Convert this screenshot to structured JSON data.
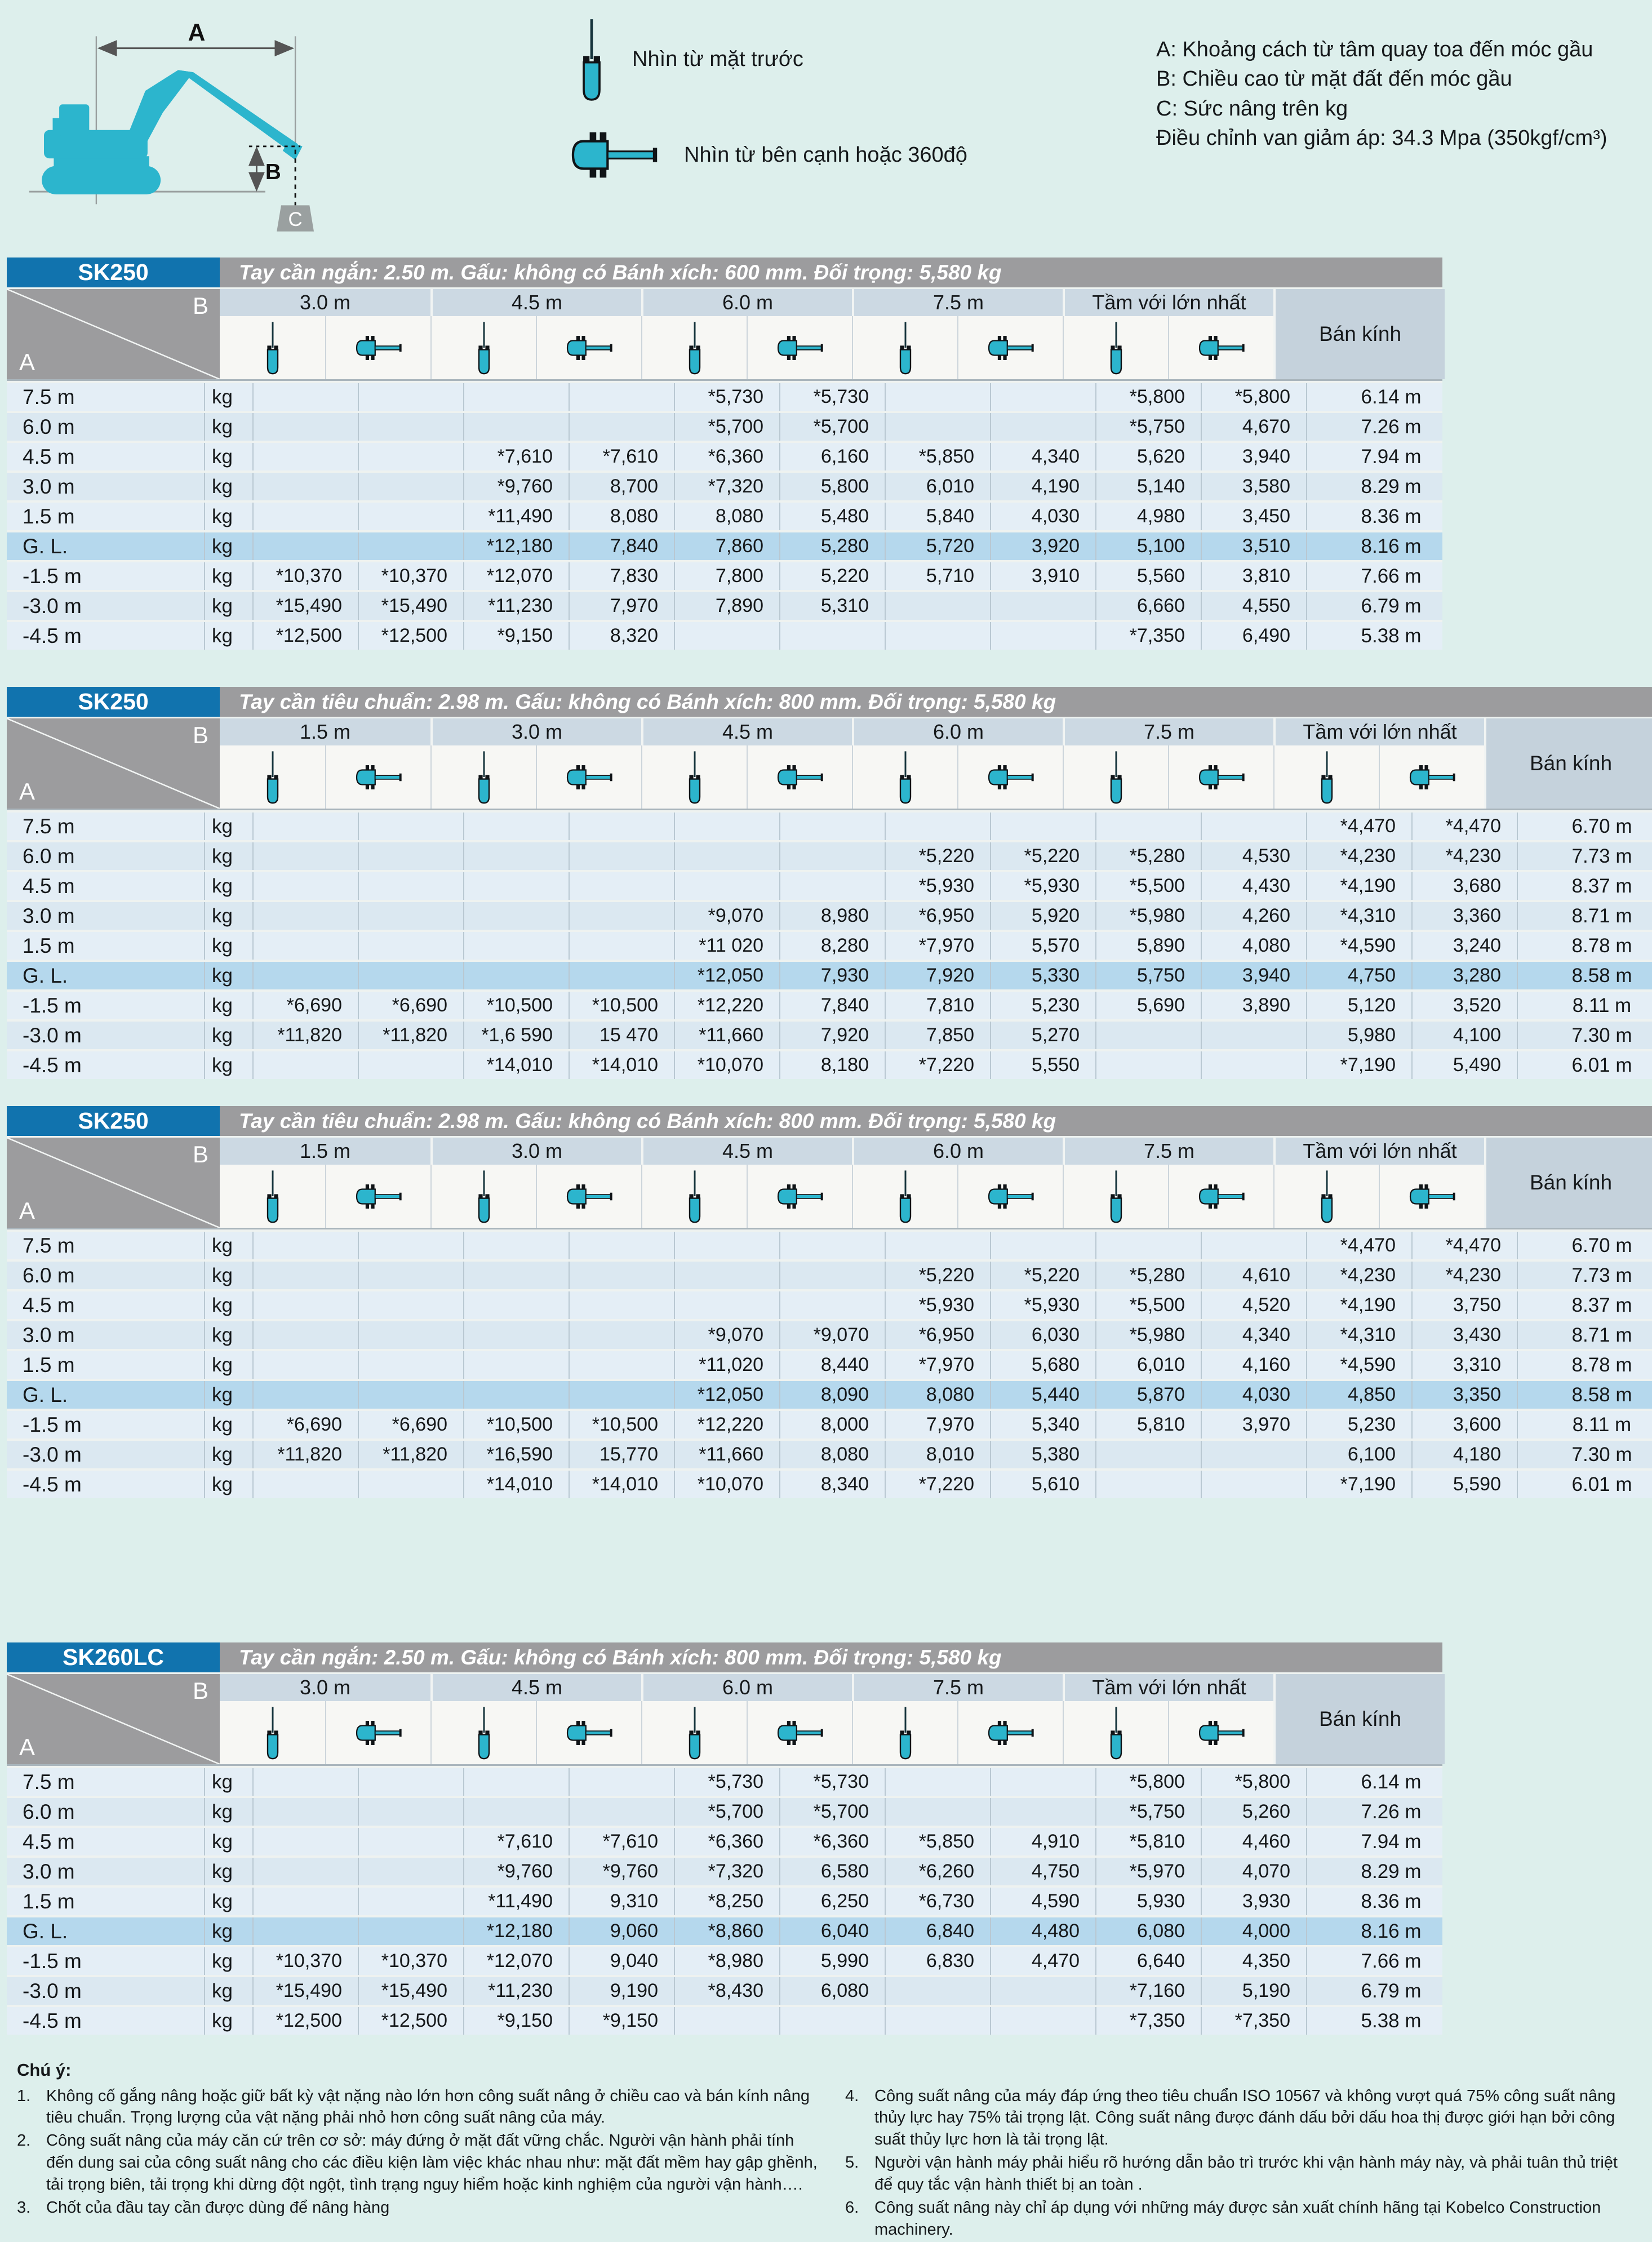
{
  "legend": {
    "dims": {
      "a": "A",
      "b": "B",
      "c": "C"
    },
    "front_view_label": "Nhìn từ mặt trước",
    "side_view_label": "Nhìn từ bên cạnh hoặc 360độ",
    "info_lines": [
      "A: Khoảng cách từ tâm quay toa đến móc gầu",
      "B: Chiều cao từ mặt đất đến móc gầu",
      "C: Sức nâng trên kg",
      "Điều chỉnh van giảm áp: 34.3 Mpa (350kgf/cm³)"
    ]
  },
  "table_common": {
    "unit": "kg",
    "radius_header": "Bán kính",
    "corner_top": "B",
    "corner_bottom": "A"
  },
  "colors": {
    "accent_blue": "#1173ae",
    "machine_teal": "#2cb5cd",
    "bar_gray": "#9c9c9e",
    "gl_row_blue": "#b5d8ed"
  },
  "tables": [
    {
      "model": "SK250",
      "spec": "Tay cần ngắn: 2.50 m. Gấu: không có Bánh xích:  600 mm. Đối trọng: 5,580 kg",
      "groups": [
        "3.0 m",
        "4.5 m",
        "6.0 m",
        "7.5 m",
        "Tầm với lớn nhất"
      ],
      "rows": [
        {
          "label": "7.5 m",
          "gl": false,
          "cells": [
            "",
            "",
            "",
            "",
            "*5,730",
            "*5,730",
            "",
            "",
            "*5,800",
            "*5,800"
          ],
          "radius": "6.14 m"
        },
        {
          "label": "6.0 m",
          "gl": false,
          "cells": [
            "",
            "",
            "",
            "",
            "*5,700",
            "*5,700",
            "",
            "",
            "*5,750",
            "4,670"
          ],
          "radius": "7.26 m"
        },
        {
          "label": "4.5 m",
          "gl": false,
          "cells": [
            "",
            "",
            "*7,610",
            "*7,610",
            "*6,360",
            "6,160",
            "*5,850",
            "4,340",
            "5,620",
            "3,940"
          ],
          "radius": "7.94 m"
        },
        {
          "label": "3.0 m",
          "gl": false,
          "cells": [
            "",
            "",
            "*9,760",
            "8,700",
            "*7,320",
            "5,800",
            "6,010",
            "4,190",
            "5,140",
            "3,580"
          ],
          "radius": "8.29 m"
        },
        {
          "label": "1.5 m",
          "gl": false,
          "cells": [
            "",
            "",
            "*11,490",
            "8,080",
            "8,080",
            "5,480",
            "5,840",
            "4,030",
            "4,980",
            "3,450"
          ],
          "radius": "8.36 m"
        },
        {
          "label": "G. L.",
          "gl": true,
          "cells": [
            "",
            "",
            "*12,180",
            "7,840",
            "7,860",
            "5,280",
            "5,720",
            "3,920",
            "5,100",
            "3,510"
          ],
          "radius": "8.16 m"
        },
        {
          "label": "-1.5 m",
          "gl": false,
          "cells": [
            "*10,370",
            "*10,370",
            "*12,070",
            "7,830",
            "7,800",
            "5,220",
            "5,710",
            "3,910",
            "5,560",
            "3,810"
          ],
          "radius": "7.66 m"
        },
        {
          "label": "-3.0 m",
          "gl": false,
          "cells": [
            "*15,490",
            "*15,490",
            "*11,230",
            "7,970",
            "7,890",
            "5,310",
            "",
            "",
            "6,660",
            "4,550"
          ],
          "radius": "6.79 m"
        },
        {
          "label": "-4.5 m",
          "gl": false,
          "cells": [
            "*12,500",
            "*12,500",
            "*9,150",
            "8,320",
            "",
            "",
            "",
            "",
            "*7,350",
            "6,490"
          ],
          "radius": "5.38 m"
        }
      ]
    },
    {
      "model": "SK250",
      "spec": "Tay cần tiêu chuẩn: 2.98 m. Gấu: không có Bánh xích:  800 mm. Đối trọng: 5,580 kg",
      "groups": [
        "1.5 m",
        "3.0 m",
        "4.5 m",
        "6.0 m",
        "7.5 m",
        "Tầm với lớn nhất"
      ],
      "rows": [
        {
          "label": "7.5 m",
          "gl": false,
          "cells": [
            "",
            "",
            "",
            "",
            "",
            "",
            "",
            "",
            "",
            "",
            "*4,470",
            "*4,470"
          ],
          "radius": "6.70 m"
        },
        {
          "label": "6.0 m",
          "gl": false,
          "cells": [
            "",
            "",
            "",
            "",
            "",
            "",
            "*5,220",
            "*5,220",
            "*5,280",
            "4,530",
            "*4,230",
            "*4,230"
          ],
          "radius": "7.73 m"
        },
        {
          "label": "4.5 m",
          "gl": false,
          "cells": [
            "",
            "",
            "",
            "",
            "",
            "",
            "*5,930",
            "*5,930",
            "*5,500",
            "4,430",
            "*4,190",
            "3,680"
          ],
          "radius": "8.37 m"
        },
        {
          "label": "3.0 m",
          "gl": false,
          "cells": [
            "",
            "",
            "",
            "",
            "*9,070",
            "8,980",
            "*6,950",
            "5,920",
            "*5,980",
            "4,260",
            "*4,310",
            "3,360"
          ],
          "radius": "8.71 m"
        },
        {
          "label": "1.5 m",
          "gl": false,
          "cells": [
            "",
            "",
            "",
            "",
            "*11 020",
            "8,280",
            "*7,970",
            "5,570",
            "5,890",
            "4,080",
            "*4,590",
            "3,240"
          ],
          "radius": "8.78 m"
        },
        {
          "label": "G. L.",
          "gl": true,
          "cells": [
            "",
            "",
            "",
            "",
            "*12,050",
            "7,930",
            "7,920",
            "5,330",
            "5,750",
            "3,940",
            "4,750",
            "3,280"
          ],
          "radius": "8.58 m"
        },
        {
          "label": "-1.5 m",
          "gl": false,
          "cells": [
            "*6,690",
            "*6,690",
            "*10,500",
            "*10,500",
            "*12,220",
            "7,840",
            "7,810",
            "5,230",
            "5,690",
            "3,890",
            "5,120",
            "3,520"
          ],
          "radius": "8.11 m"
        },
        {
          "label": "-3.0 m",
          "gl": false,
          "cells": [
            "*11,820",
            "*11,820",
            "*1,6 590",
            "15 470",
            "*11,660",
            "7,920",
            "7,850",
            "5,270",
            "",
            "",
            "5,980",
            "4,100"
          ],
          "radius": "7.30 m"
        },
        {
          "label": "-4.5 m",
          "gl": false,
          "cells": [
            "",
            "",
            "*14,010",
            "*14,010",
            "*10,070",
            "8,180",
            "*7,220",
            "5,550",
            "",
            "",
            "*7,190",
            "5,490"
          ],
          "radius": "6.01 m"
        }
      ]
    },
    {
      "model": "SK250",
      "spec": "Tay cần tiêu chuẩn: 2.98 m. Gấu: không có Bánh xích:  800 mm. Đối trọng: 5,580 kg",
      "groups": [
        "1.5 m",
        "3.0 m",
        "4.5 m",
        "6.0 m",
        "7.5 m",
        "Tầm với lớn nhất"
      ],
      "rows": [
        {
          "label": "7.5 m",
          "gl": false,
          "cells": [
            "",
            "",
            "",
            "",
            "",
            "",
            "",
            "",
            "",
            "",
            "*4,470",
            "*4,470"
          ],
          "radius": "6.70 m"
        },
        {
          "label": "6.0 m",
          "gl": false,
          "cells": [
            "",
            "",
            "",
            "",
            "",
            "",
            "*5,220",
            "*5,220",
            "*5,280",
            "4,610",
            "*4,230",
            "*4,230"
          ],
          "radius": "7.73 m"
        },
        {
          "label": "4.5 m",
          "gl": false,
          "cells": [
            "",
            "",
            "",
            "",
            "",
            "",
            "*5,930",
            "*5,930",
            "*5,500",
            "4,520",
            "*4,190",
            "3,750"
          ],
          "radius": "8.37 m"
        },
        {
          "label": "3.0 m",
          "gl": false,
          "cells": [
            "",
            "",
            "",
            "",
            "*9,070",
            "*9,070",
            "*6,950",
            "6,030",
            "*5,980",
            "4,340",
            "*4,310",
            "3,430"
          ],
          "radius": "8.71 m"
        },
        {
          "label": "1.5 m",
          "gl": false,
          "cells": [
            "",
            "",
            "",
            "",
            "*11,020",
            "8,440",
            "*7,970",
            "5,680",
            "6,010",
            "4,160",
            "*4,590",
            "3,310"
          ],
          "radius": "8.78 m"
        },
        {
          "label": "G. L.",
          "gl": true,
          "cells": [
            "",
            "",
            "",
            "",
            "*12,050",
            "8,090",
            "8,080",
            "5,440",
            "5,870",
            "4,030",
            "4,850",
            "3,350"
          ],
          "radius": "8.58 m"
        },
        {
          "label": "-1.5 m",
          "gl": false,
          "cells": [
            "*6,690",
            "*6,690",
            "*10,500",
            "*10,500",
            "*12,220",
            "8,000",
            "7,970",
            "5,340",
            "5,810",
            "3,970",
            "5,230",
            "3,600"
          ],
          "radius": "8.11 m"
        },
        {
          "label": "-3.0 m",
          "gl": false,
          "cells": [
            "*11,820",
            "*11,820",
            "*16,590",
            "15,770",
            "*11,660",
            "8,080",
            "8,010",
            "5,380",
            "",
            "",
            "6,100",
            "4,180"
          ],
          "radius": "7.30 m"
        },
        {
          "label": "-4.5 m",
          "gl": false,
          "cells": [
            "",
            "",
            "*14,010",
            "*14,010",
            "*10,070",
            "8,340",
            "*7,220",
            "5,610",
            "",
            "",
            "*7,190",
            "5,590"
          ],
          "radius": "6.01 m"
        }
      ]
    },
    {
      "model": "SK260LC",
      "spec": "Tay cần ngắn: 2.50 m. Gấu: không có Bánh xích:  800 mm. Đối trọng: 5,580 kg",
      "groups": [
        "3.0 m",
        "4.5 m",
        "6.0 m",
        "7.5 m",
        "Tầm với lớn nhất"
      ],
      "rows": [
        {
          "label": "7.5 m",
          "gl": false,
          "cells": [
            "",
            "",
            "",
            "",
            "*5,730",
            "*5,730",
            "",
            "",
            "*5,800",
            "*5,800"
          ],
          "radius": "6.14 m"
        },
        {
          "label": "6.0 m",
          "gl": false,
          "cells": [
            "",
            "",
            "",
            "",
            "*5,700",
            "*5,700",
            "",
            "",
            "*5,750",
            "5,260"
          ],
          "radius": "7.26 m"
        },
        {
          "label": "4.5 m",
          "gl": false,
          "cells": [
            "",
            "",
            "*7,610",
            "*7,610",
            "*6,360",
            "*6,360",
            "*5,850",
            "4,910",
            "*5,810",
            "4,460"
          ],
          "radius": "7.94 m"
        },
        {
          "label": "3.0 m",
          "gl": false,
          "cells": [
            "",
            "",
            "*9,760",
            "*9,760",
            "*7,320",
            "6,580",
            "*6,260",
            "4,750",
            "*5,970",
            "4,070"
          ],
          "radius": "8.29 m"
        },
        {
          "label": "1.5 m",
          "gl": false,
          "cells": [
            "",
            "",
            "*11,490",
            "9,310",
            "*8,250",
            "6,250",
            "*6,730",
            "4,590",
            "5,930",
            "3,930"
          ],
          "radius": "8.36 m"
        },
        {
          "label": "G. L.",
          "gl": true,
          "cells": [
            "",
            "",
            "*12,180",
            "9,060",
            "*8,860",
            "6,040",
            "6,840",
            "4,480",
            "6,080",
            "4,000"
          ],
          "radius": "8.16 m"
        },
        {
          "label": "-1.5 m",
          "gl": false,
          "cells": [
            "*10,370",
            "*10,370",
            "*12,070",
            "9,040",
            "*8,980",
            "5,990",
            "6,830",
            "4,470",
            "6,640",
            "4,350"
          ],
          "radius": "7.66 m"
        },
        {
          "label": "-3.0 m",
          "gl": false,
          "cells": [
            "*15,490",
            "*15,490",
            "*11,230",
            "9,190",
            "*8,430",
            "6,080",
            "",
            "",
            "*7,160",
            "5,190"
          ],
          "radius": "6.79 m"
        },
        {
          "label": "-4.5 m",
          "gl": false,
          "cells": [
            "*12,500",
            "*12,500",
            "*9,150",
            "*9,150",
            "",
            "",
            "",
            "",
            "*7,350",
            "*7,350"
          ],
          "radius": "5.38 m"
        }
      ]
    }
  ],
  "notes": {
    "heading": "Chú ý:",
    "left": [
      {
        "num": "1.",
        "text": "Không cố gắng nâng hoặc giữ bất kỳ vật nặng nào lớn hơn công suất nâng ở chiều cao và bán kính nâng tiêu chuẩn. Trọng lượng của vật nặng phải nhỏ hơn công suất nâng của máy."
      },
      {
        "num": "2.",
        "text": "Công suất nâng của máy căn cứ trên cơ sở: máy đứng ở mặt đất vững chắc.  Người vận hành phải tính đến dung sai của công suất nâng  cho các điều kiện làm việc khác nhau như:  mặt đất mềm hay gập ghềnh, tải trọng biên, tải trọng khi dừng đột ngột, tình trạng nguy hiểm hoặc kinh nghiệm của người vận hành…."
      },
      {
        "num": "3.",
        "text": "Chốt của đầu tay cần được dùng để nâng hàng"
      }
    ],
    "right": [
      {
        "num": "4.",
        "text": "Công suất nâng của máy đáp ứng theo tiêu chuẩn ISO 10567 và không vượt quá 75% công suất nâng thủy lực hay 75% tải trọng lật. Công suất nâng được đánh dấu bởi dấu hoa thị được giới hạn bởi công suất thủy lực hơn là tải trọng lật."
      },
      {
        "num": "5.",
        "text": "Người vận hành máy phải hiểu rõ hướng dẫn bảo trì trước khi vận hành máy này, và phải tuân thủ triệt để quy tắc vận hành thiết bị an toàn ."
      },
      {
        "num": "6.",
        "text": "Công suất nâng này chỉ áp dụng với những máy được sản xuất chính hãng tại Kobelco Construction machinery."
      }
    ]
  }
}
